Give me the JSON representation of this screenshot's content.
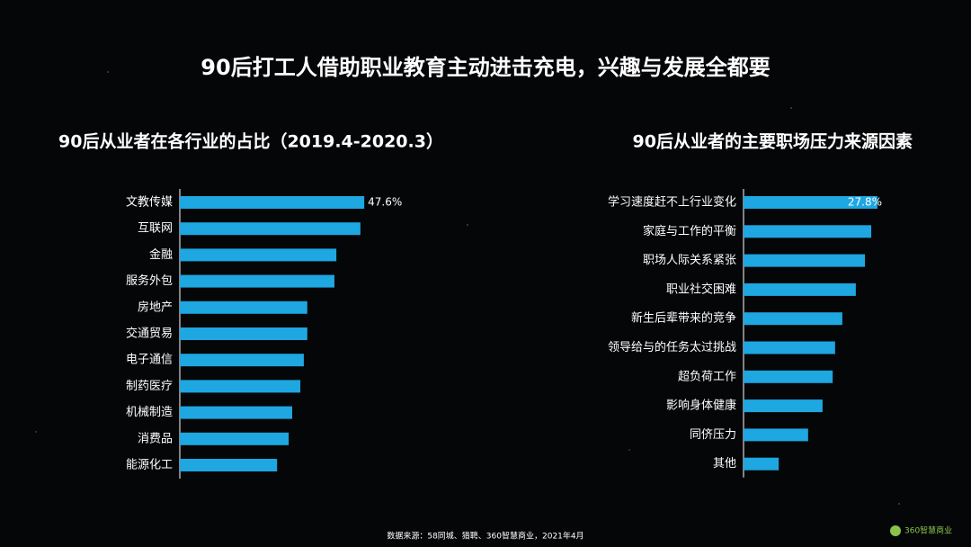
{
  "title": "90后打工人借助职业教育主动进击充电，兴趣与发展全都要",
  "source": "数据来源：58同城、猎聘、360智慧商业，2021年4月",
  "logo": "360智慧商业",
  "chart_data": [
    {
      "type": "bar",
      "orientation": "horizontal",
      "title": "90后从业者在各行业的占比（2019.4-2020.3）",
      "color": "#1ea7e1",
      "categories": [
        "文教传媒",
        "互联网",
        "金融",
        "服务外包",
        "房地产",
        "交通贸易",
        "电子通信",
        "制药医疗",
        "机械制造",
        "消费品",
        "能源化工"
      ],
      "values": [
        47.6,
        46.6,
        40.4,
        39.9,
        32.9,
        32.9,
        32.0,
        31.1,
        29.0,
        28.1,
        25.1
      ],
      "value_labels": [
        "47.6%",
        null,
        null,
        null,
        null,
        null,
        null,
        null,
        null,
        null,
        null
      ]
    },
    {
      "type": "bar",
      "orientation": "horizontal",
      "title": "90后从业者的主要职场压力来源因素",
      "color": "#1ea7e1",
      "categories": [
        "学习速度赶不上行业变化",
        "家庭与工作的平衡",
        "职场人际关系紧张",
        "职业社交困难",
        "新生后辈带来的竞争",
        "领导给与的任务太过挑战",
        "超负荷工作",
        "影响身体健康",
        "同侪压力",
        "其他"
      ],
      "values": [
        27.8,
        26.5,
        25.2,
        23.3,
        20.5,
        19.0,
        18.5,
        16.4,
        13.4,
        7.3
      ],
      "value_labels": [
        "27.8%",
        null,
        null,
        null,
        null,
        null,
        null,
        null,
        null,
        null
      ]
    }
  ]
}
